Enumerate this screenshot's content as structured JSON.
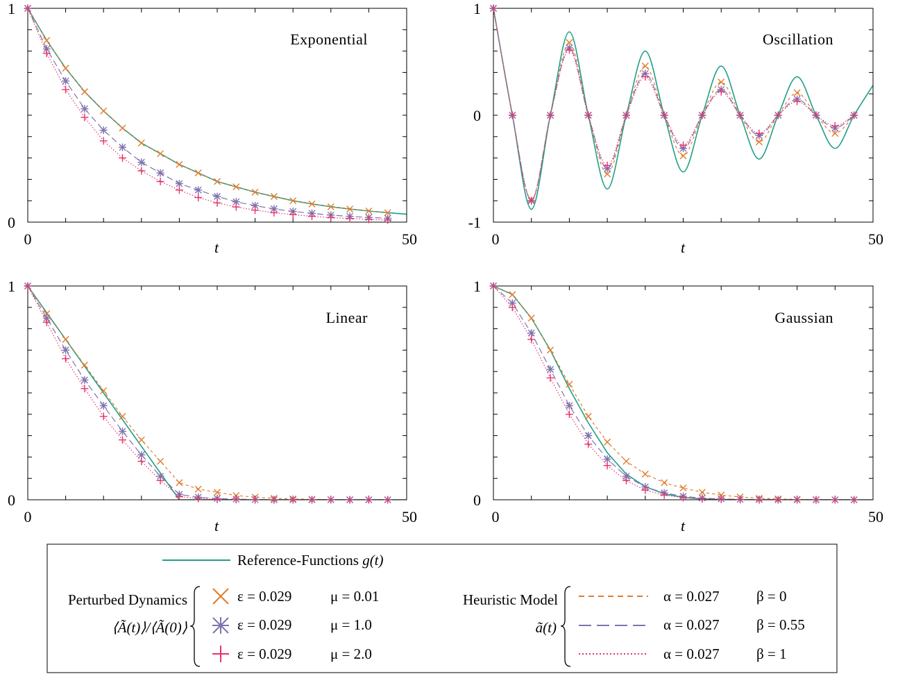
{
  "chart_data": [
    {
      "type": "line",
      "title": "Exponential",
      "xlabel": "t",
      "xlim": [
        0,
        50
      ],
      "ylim": [
        0,
        1
      ],
      "x_tick_labels": [
        "0",
        "50"
      ],
      "y_tick_labels": [
        "0",
        "1"
      ],
      "series": [
        {
          "name": "Reference-Functions g(t)",
          "x": [
            0,
            2.5,
            5,
            7.5,
            10,
            12.5,
            15,
            17.5,
            20,
            22.5,
            25,
            27.5,
            30,
            32.5,
            35,
            37.5,
            40,
            42.5,
            45,
            47.5,
            50
          ],
          "y": [
            1,
            0.85,
            0.72,
            0.61,
            0.52,
            0.44,
            0.37,
            0.32,
            0.27,
            0.23,
            0.19,
            0.165,
            0.14,
            0.12,
            0.1,
            0.085,
            0.072,
            0.061,
            0.052,
            0.044,
            0.037
          ]
        },
        {
          "name": "ε = 0.029 μ = 0.01",
          "x": [
            0,
            2.5,
            5,
            7.5,
            10,
            12.5,
            15,
            17.5,
            20,
            22.5,
            25,
            27.5,
            30,
            32.5,
            35,
            37.5,
            40,
            42.5,
            45,
            47.5
          ],
          "y": [
            1,
            0.85,
            0.72,
            0.61,
            0.52,
            0.44,
            0.37,
            0.32,
            0.27,
            0.23,
            0.19,
            0.165,
            0.14,
            0.12,
            0.1,
            0.085,
            0.072,
            0.061,
            0.052,
            0.044
          ]
        },
        {
          "name": "ε = 0.029 μ = 1.0",
          "x": [
            0,
            2.5,
            5,
            7.5,
            10,
            12.5,
            15,
            17.5,
            20,
            22.5,
            25,
            27.5,
            30,
            32.5,
            35,
            37.5,
            40,
            42.5,
            45,
            47.5
          ],
          "y": [
            1,
            0.81,
            0.66,
            0.53,
            0.43,
            0.35,
            0.28,
            0.23,
            0.18,
            0.15,
            0.12,
            0.095,
            0.077,
            0.062,
            0.05,
            0.041,
            0.033,
            0.027,
            0.022,
            0.018
          ]
        },
        {
          "name": "ε = 0.029 μ = 2.0",
          "x": [
            0,
            2.5,
            5,
            7.5,
            10,
            12.5,
            15,
            17.5,
            20,
            22.5,
            25,
            27.5,
            30,
            32.5,
            35,
            37.5,
            40,
            42.5,
            45,
            47.5
          ],
          "y": [
            1,
            0.79,
            0.62,
            0.49,
            0.38,
            0.3,
            0.24,
            0.19,
            0.15,
            0.115,
            0.09,
            0.071,
            0.056,
            0.044,
            0.035,
            0.027,
            0.021,
            0.017,
            0.013,
            0.01
          ]
        }
      ]
    },
    {
      "type": "line",
      "title": "Oscillation",
      "xlabel": "t",
      "xlim": [
        0,
        50
      ],
      "ylim": [
        -1,
        1
      ],
      "x_tick_labels": [
        "0",
        "50"
      ],
      "y_tick_labels": [
        "-1",
        "0",
        "1"
      ],
      "series": [
        {
          "name": "Reference-Functions g(t)",
          "x": [
            0,
            2.5,
            5,
            7.5,
            10,
            12.5,
            15,
            17.5,
            20,
            22.5,
            25,
            27.5,
            30,
            32.5,
            35,
            37.5,
            40,
            42.5,
            45,
            47.5,
            50
          ],
          "y": [
            1,
            0,
            -0.88,
            0,
            0.78,
            0,
            -0.69,
            0,
            0.6,
            0,
            -0.53,
            0,
            0.46,
            0,
            -0.41,
            0,
            0.36,
            0,
            -0.31,
            0,
            0.28
          ]
        },
        {
          "name": "ε = 0.029 μ = 0.01",
          "x": [
            0,
            2.5,
            5,
            7.5,
            10,
            12.5,
            15,
            17.5,
            20,
            22.5,
            25,
            27.5,
            30,
            32.5,
            35,
            37.5,
            40,
            42.5,
            45,
            47.5
          ],
          "y": [
            1,
            0,
            -0.79,
            0,
            0.68,
            0,
            -0.55,
            0,
            0.46,
            0,
            -0.38,
            0,
            0.31,
            0,
            -0.25,
            0,
            0.21,
            0,
            -0.17,
            0
          ]
        },
        {
          "name": "ε = 0.029 μ = 1.0",
          "x": [
            0,
            2.5,
            5,
            7.5,
            10,
            12.5,
            15,
            17.5,
            20,
            22.5,
            25,
            27.5,
            30,
            32.5,
            35,
            37.5,
            40,
            42.5,
            45,
            47.5
          ],
          "y": [
            1,
            0,
            -0.8,
            0,
            0.63,
            0,
            -0.5,
            0,
            0.39,
            0,
            -0.31,
            0,
            0.24,
            0,
            -0.19,
            0,
            0.15,
            0,
            -0.12,
            0
          ]
        },
        {
          "name": "ε = 0.029 μ = 2.0",
          "x": [
            0,
            2.5,
            5,
            7.5,
            10,
            12.5,
            15,
            17.5,
            20,
            22.5,
            25,
            27.5,
            30,
            32.5,
            35,
            37.5,
            40,
            42.5,
            45,
            47.5
          ],
          "y": [
            1,
            0,
            -0.8,
            0,
            0.61,
            0,
            -0.47,
            0,
            0.36,
            0,
            -0.28,
            0,
            0.22,
            0,
            -0.17,
            0,
            0.13,
            0,
            -0.1,
            0
          ]
        }
      ]
    },
    {
      "type": "line",
      "title": "Linear",
      "xlabel": "t",
      "xlim": [
        0,
        50
      ],
      "ylim": [
        0,
        1
      ],
      "x_tick_labels": [
        "0",
        "50"
      ],
      "y_tick_labels": [
        "0",
        "1"
      ],
      "series": [
        {
          "name": "Reference-Functions g(t)",
          "x": [
            0,
            20,
            50
          ],
          "y": [
            1,
            0,
            0
          ]
        },
        {
          "name": "ε = 0.029 μ = 0.01",
          "x": [
            0,
            2.5,
            5,
            7.5,
            10,
            12.5,
            15,
            17.5,
            20,
            22.5,
            25,
            27.5,
            30,
            32.5,
            35,
            37.5,
            40,
            42.5,
            45,
            47.5
          ],
          "y": [
            1,
            0.87,
            0.75,
            0.63,
            0.51,
            0.39,
            0.28,
            0.18,
            0.08,
            0.05,
            0.035,
            0.02,
            0.012,
            0.007,
            0.004,
            0.002,
            0.001,
            0,
            0,
            0
          ]
        },
        {
          "name": "ε = 0.029 μ = 1.0",
          "x": [
            0,
            2.5,
            5,
            7.5,
            10,
            12.5,
            15,
            17.5,
            20,
            22.5,
            25,
            27.5,
            30,
            32.5,
            35,
            37.5,
            40,
            42.5,
            45,
            47.5
          ],
          "y": [
            1,
            0.85,
            0.7,
            0.56,
            0.44,
            0.32,
            0.21,
            0.11,
            0.025,
            0.012,
            0.006,
            0.003,
            0.001,
            0,
            0,
            0,
            0,
            0,
            0,
            0
          ]
        },
        {
          "name": "ε = 0.029 μ = 2.0",
          "x": [
            0,
            2.5,
            5,
            7.5,
            10,
            12.5,
            15,
            17.5,
            20,
            22.5,
            25,
            27.5,
            30,
            32.5,
            35,
            37.5,
            40,
            42.5,
            45,
            47.5
          ],
          "y": [
            1,
            0.83,
            0.66,
            0.52,
            0.39,
            0.28,
            0.18,
            0.09,
            0.015,
            0.006,
            0.002,
            0.001,
            0,
            0,
            0,
            0,
            0,
            0,
            0,
            0
          ]
        }
      ]
    },
    {
      "type": "line",
      "title": "Gaussian",
      "xlabel": "t",
      "xlim": [
        0,
        50
      ],
      "ylim": [
        0,
        1
      ],
      "x_tick_labels": [
        "0",
        "50"
      ],
      "y_tick_labels": [
        "0",
        "1"
      ],
      "series": [
        {
          "name": "Reference-Functions g(t)",
          "x": [
            0,
            2.5,
            5,
            7.5,
            10,
            12.5,
            15,
            17.5,
            20,
            22.5,
            25,
            27.5,
            30,
            32.5,
            35,
            37.5,
            40,
            42.5,
            45,
            47.5,
            50
          ],
          "y": [
            1,
            0.96,
            0.85,
            0.7,
            0.52,
            0.36,
            0.22,
            0.12,
            0.061,
            0.028,
            0.011,
            0.004,
            0.0013,
            0.0004,
            0.0001,
            0,
            0,
            0,
            0,
            0,
            0
          ]
        },
        {
          "name": "ε = 0.029 μ = 0.01",
          "x": [
            0,
            2.5,
            5,
            7.5,
            10,
            12.5,
            15,
            17.5,
            20,
            22.5,
            25,
            27.5,
            30,
            32.5,
            35,
            37.5,
            40,
            42.5,
            45,
            47.5
          ],
          "y": [
            1,
            0.96,
            0.85,
            0.7,
            0.54,
            0.39,
            0.27,
            0.18,
            0.12,
            0.08,
            0.055,
            0.035,
            0.022,
            0.013,
            0.007,
            0.004,
            0.002,
            0.001,
            0,
            0
          ]
        },
        {
          "name": "ε = 0.029 μ = 1.0",
          "x": [
            0,
            2.5,
            5,
            7.5,
            10,
            12.5,
            15,
            17.5,
            20,
            22.5,
            25,
            27.5,
            30,
            32.5,
            35,
            37.5,
            40,
            42.5,
            45,
            47.5
          ],
          "y": [
            1,
            0.92,
            0.78,
            0.61,
            0.44,
            0.3,
            0.19,
            0.11,
            0.06,
            0.032,
            0.016,
            0.008,
            0.004,
            0.002,
            0.001,
            0,
            0,
            0,
            0,
            0
          ]
        },
        {
          "name": "ε = 0.029 μ = 2.0",
          "x": [
            0,
            2.5,
            5,
            7.5,
            10,
            12.5,
            15,
            17.5,
            20,
            22.5,
            25,
            27.5,
            30,
            32.5,
            35,
            37.5,
            40,
            42.5,
            45,
            47.5
          ],
          "y": [
            1,
            0.9,
            0.75,
            0.57,
            0.4,
            0.26,
            0.16,
            0.09,
            0.045,
            0.022,
            0.01,
            0.004,
            0.002,
            0.001,
            0,
            0,
            0,
            0,
            0,
            0
          ]
        }
      ]
    }
  ],
  "colors": {
    "reference": "#1f9e89",
    "eps_mu_001": "#e07b2a",
    "eps_mu_10": "#7f72ae",
    "eps_mu_20": "#e6336b"
  },
  "legend": {
    "reference_label": "Reference-Functions ",
    "reference_func": "g(t)",
    "perturbed_label": "Perturbed Dynamics",
    "perturbed_formula": "⟨Ã(t)⟩/⟨Ã(0)⟩",
    "heuristic_label": "Heuristic Model",
    "heuristic_formula": "ã(t)",
    "perturbed": [
      {
        "eps": "ε = 0.029",
        "mu": "μ = 0.01",
        "marker": "x"
      },
      {
        "eps": "ε = 0.029",
        "mu": "μ = 1.0",
        "marker": "star"
      },
      {
        "eps": "ε = 0.029",
        "mu": "μ = 2.0",
        "marker": "plus"
      }
    ],
    "heuristic": [
      {
        "alpha": "α = 0.027",
        "beta": "β = 0",
        "line": "short-dash"
      },
      {
        "alpha": "α = 0.027",
        "beta": "β = 0.55",
        "line": "long-dash"
      },
      {
        "alpha": "α = 0.027",
        "beta": "β = 1",
        "line": "dotted"
      }
    ]
  }
}
